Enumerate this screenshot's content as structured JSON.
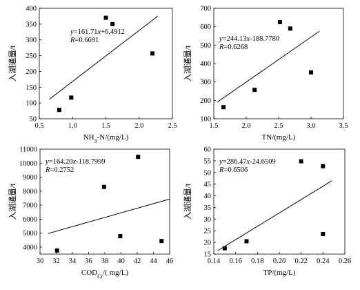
{
  "chart_data": [
    {
      "type": "scatter",
      "xlabel_main": "NH",
      "xlabel_sub": "3",
      "xlabel_rest": "-N/(mg/L)",
      "ylabel": "入湖通量/t",
      "xlim": [
        0.5,
        2.5
      ],
      "ylim": [
        50,
        400
      ],
      "xticks": [
        "0.5",
        "1.0",
        "1.5",
        "2.0",
        "2.5"
      ],
      "yticks": [
        "50",
        "100",
        "150",
        "200",
        "250",
        "300",
        "350",
        "400"
      ],
      "points": [
        {
          "x": 0.8,
          "y": 78
        },
        {
          "x": 0.98,
          "y": 117
        },
        {
          "x": 1.5,
          "y": 370
        },
        {
          "x": 1.6,
          "y": 350
        },
        {
          "x": 2.2,
          "y": 257
        }
      ],
      "fit": {
        "x": [
          0.65,
          2.28
        ],
        "y_label": "y=161.71x+6.4912",
        "r_label": "R=0.6691"
      },
      "grid": false
    },
    {
      "type": "scatter",
      "xlabel_main": "TN/(mg/L)",
      "xlabel_sub": "",
      "xlabel_rest": "",
      "ylabel": "入湖通量/t",
      "xlim": [
        1.5,
        3.5
      ],
      "ylim": [
        100,
        700
      ],
      "xticks": [
        "1.5",
        "2.0",
        "2.5",
        "3.0",
        "3.5"
      ],
      "yticks": [
        "100",
        "200",
        "300",
        "400",
        "500",
        "600",
        "700"
      ],
      "points": [
        {
          "x": 1.65,
          "y": 163
        },
        {
          "x": 2.13,
          "y": 257
        },
        {
          "x": 2.52,
          "y": 625
        },
        {
          "x": 2.68,
          "y": 590
        },
        {
          "x": 3.0,
          "y": 352
        }
      ],
      "fit": {
        "x": [
          1.55,
          3.13
        ],
        "y_label": "y=244.13x-188.7780",
        "r_label": "R=0.6268"
      },
      "grid": false
    },
    {
      "type": "scatter",
      "xlabel_main": "COD",
      "xlabel_sub": "Cr",
      "xlabel_rest": "/( mg/L)",
      "ylabel": "入湖通量/t",
      "xlim": [
        30,
        46
      ],
      "ylim": [
        3500,
        11000
      ],
      "xticks": [
        "30",
        "32",
        "34",
        "36",
        "38",
        "40",
        "42",
        "44",
        "46"
      ],
      "yticks": [
        "4000",
        "5000",
        "6000",
        "7000",
        "8000",
        "9000",
        "10000",
        "11000"
      ],
      "points": [
        {
          "x": 32.1,
          "y": 3760
        },
        {
          "x": 37.9,
          "y": 8300
        },
        {
          "x": 39.9,
          "y": 4780
        },
        {
          "x": 42.1,
          "y": 10450
        },
        {
          "x": 45,
          "y": 4430
        }
      ],
      "fit": {
        "x": [
          31,
          46
        ],
        "y_label": "y=164.20x-118.7999",
        "r_label": "R=0.2752"
      },
      "grid": false
    },
    {
      "type": "scatter",
      "xlabel_main": "TP/(mg/L)",
      "xlabel_sub": "",
      "xlabel_rest": "",
      "ylabel": "入湖通量/t",
      "xlim": [
        0.14,
        0.26
      ],
      "ylim": [
        15,
        60
      ],
      "xticks": [
        "0.14",
        "0.16",
        "0.18",
        "0.20",
        "0.22",
        "0.24",
        "0.26"
      ],
      "yticks": [
        "15",
        "20",
        "25",
        "30",
        "35",
        "40",
        "45",
        "50",
        "55",
        "60"
      ],
      "points": [
        {
          "x": 0.15,
          "y": 17.5
        },
        {
          "x": 0.17,
          "y": 20.5
        },
        {
          "x": 0.22,
          "y": 54.8
        },
        {
          "x": 0.24,
          "y": 52.7
        },
        {
          "x": 0.24,
          "y": 23.6
        }
      ],
      "fit": {
        "x": [
          0.144,
          0.248
        ],
        "y_label": "y=286.47x-24.6509",
        "r_label": "R=0.6506"
      },
      "grid": false
    }
  ]
}
